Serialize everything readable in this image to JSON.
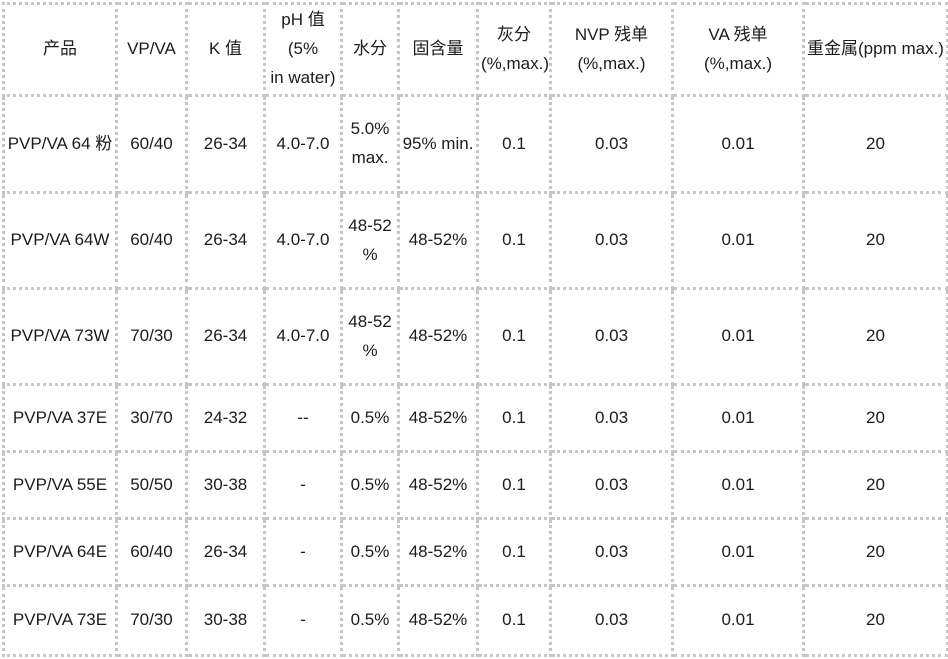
{
  "colors": {
    "background": "#ffffff",
    "border": "#c6c6c6",
    "text": "#1c1c1c"
  },
  "table": {
    "column_keys": [
      "product",
      "vp-va",
      "k-value",
      "ph-value",
      "moisture",
      "solid-content",
      "ash",
      "nvp-residual",
      "va-residual",
      "heavy-metals"
    ],
    "headers": [
      "产品",
      "VP/VA",
      "K 值",
      "pH 值(5%\nin water)",
      "水分",
      "固含量",
      "灰分\n(%,max.)",
      "NVP 残单\n(%,max.)",
      "VA 残单(%,max.)",
      "重金属(ppm max.)"
    ],
    "rows": [
      [
        "PVP/VA 64 粉",
        "60/40",
        "26-34",
        "4.0-7.0",
        "5.0%\nmax.",
        "95% min.",
        "0.1",
        "0.03",
        "0.01",
        "20"
      ],
      [
        "PVP/VA 64W",
        "60/40",
        "26-34",
        "4.0-7.0",
        "48-52\n%",
        "48-52%",
        "0.1",
        "0.03",
        "0.01",
        "20"
      ],
      [
        "PVP/VA 73W",
        "70/30",
        "26-34",
        "4.0-7.0",
        "48-52\n%",
        "48-52%",
        "0.1",
        "0.03",
        "0.01",
        "20"
      ],
      [
        "PVP/VA 37E",
        "30/70",
        "24-32",
        "--",
        "0.5%",
        "48-52%",
        "0.1",
        "0.03",
        "0.01",
        "20"
      ],
      [
        "PVP/VA 55E",
        "50/50",
        "30-38",
        "-",
        "0.5%",
        "48-52%",
        "0.1",
        "0.03",
        "0.01",
        "20"
      ],
      [
        "PVP/VA 64E",
        "60/40",
        "26-34",
        "-",
        "0.5%",
        "48-52%",
        "0.1",
        "0.03",
        "0.01",
        "20"
      ],
      [
        "PVP/VA 73E",
        "70/30",
        "30-38",
        "-",
        "0.5%",
        "48-52%",
        "0.1",
        "0.03",
        "0.01",
        "20"
      ]
    ]
  }
}
